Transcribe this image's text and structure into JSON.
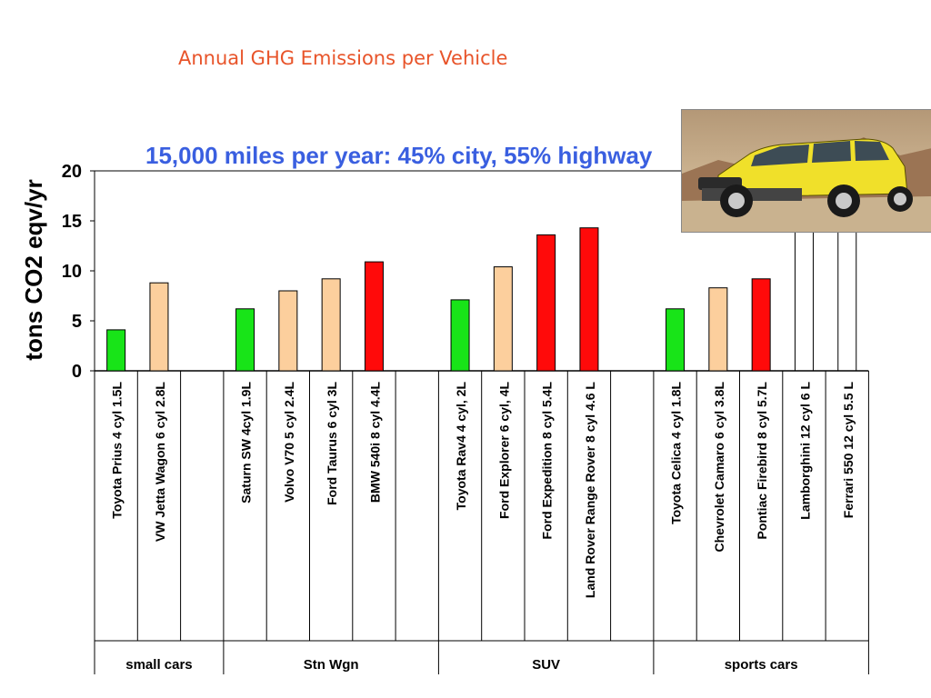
{
  "slide": {
    "title": "Annual GHG Emissions per Vehicle"
  },
  "chart_data": {
    "type": "bar",
    "title": "15,000 miles per year:  45% city, 55% highway",
    "ylabel": "tons CO2 eqv/yr",
    "ylim": [
      0,
      20
    ],
    "yticks": [
      0,
      5,
      10,
      15,
      20
    ],
    "grid": false,
    "colors": {
      "green": "#18e418",
      "tan": "#fccf9d",
      "red": "#ff0a0a"
    },
    "groups": [
      {
        "name": "small cars",
        "bars": [
          {
            "label": "Toyota Prius 4 cyl 1.5L",
            "value": 4.1,
            "color": "green"
          },
          {
            "label": "VW Jetta Wagon 6 cyl 2.8L",
            "value": 8.8,
            "color": "tan"
          },
          {
            "label": "",
            "value": null,
            "color": null
          }
        ]
      },
      {
        "name": "Stn Wgn",
        "bars": [
          {
            "label": "Saturn SW 4cyl 1.9L",
            "value": 6.2,
            "color": "green"
          },
          {
            "label": "Volvo V70 5 cyl 2.4L",
            "value": 8.0,
            "color": "tan"
          },
          {
            "label": "Ford Taurus 6 cyl 3L",
            "value": 9.2,
            "color": "tan"
          },
          {
            "label": "BMW 540i 8 cyl 4.4L",
            "value": 10.9,
            "color": "red"
          },
          {
            "label": "",
            "value": null,
            "color": null
          }
        ]
      },
      {
        "name": "SUV",
        "bars": [
          {
            "label": "Toyota Rav4 4 cyl, 2L",
            "value": 7.1,
            "color": "green"
          },
          {
            "label": "Ford Explorer 6 cyl, 4L",
            "value": 10.4,
            "color": "tan"
          },
          {
            "label": "Ford Expedition 8 cyl 5.4L",
            "value": 13.6,
            "color": "red"
          },
          {
            "label": "Land Rover Range Rover 8 cyl 4.6 L",
            "value": 14.3,
            "color": "red"
          },
          {
            "label": "",
            "value": null,
            "color": null
          }
        ]
      },
      {
        "name": "sports cars",
        "bars": [
          {
            "label": "Toyota Celica 4 cyl 1.8L",
            "value": 6.2,
            "color": "green"
          },
          {
            "label": "Chevrolet Camaro 6 cyl 3.8L",
            "value": 8.3,
            "color": "tan"
          },
          {
            "label": "Pontiac Firebird 8 cyl 5.7L",
            "value": 9.2,
            "color": "red"
          },
          {
            "label": "Lamborghini 12 cyl 6 L",
            "value": null,
            "color": null
          },
          {
            "label": "Ferrari 550 12 cyl 5.5 L",
            "value": null,
            "color": null
          }
        ]
      }
    ]
  }
}
